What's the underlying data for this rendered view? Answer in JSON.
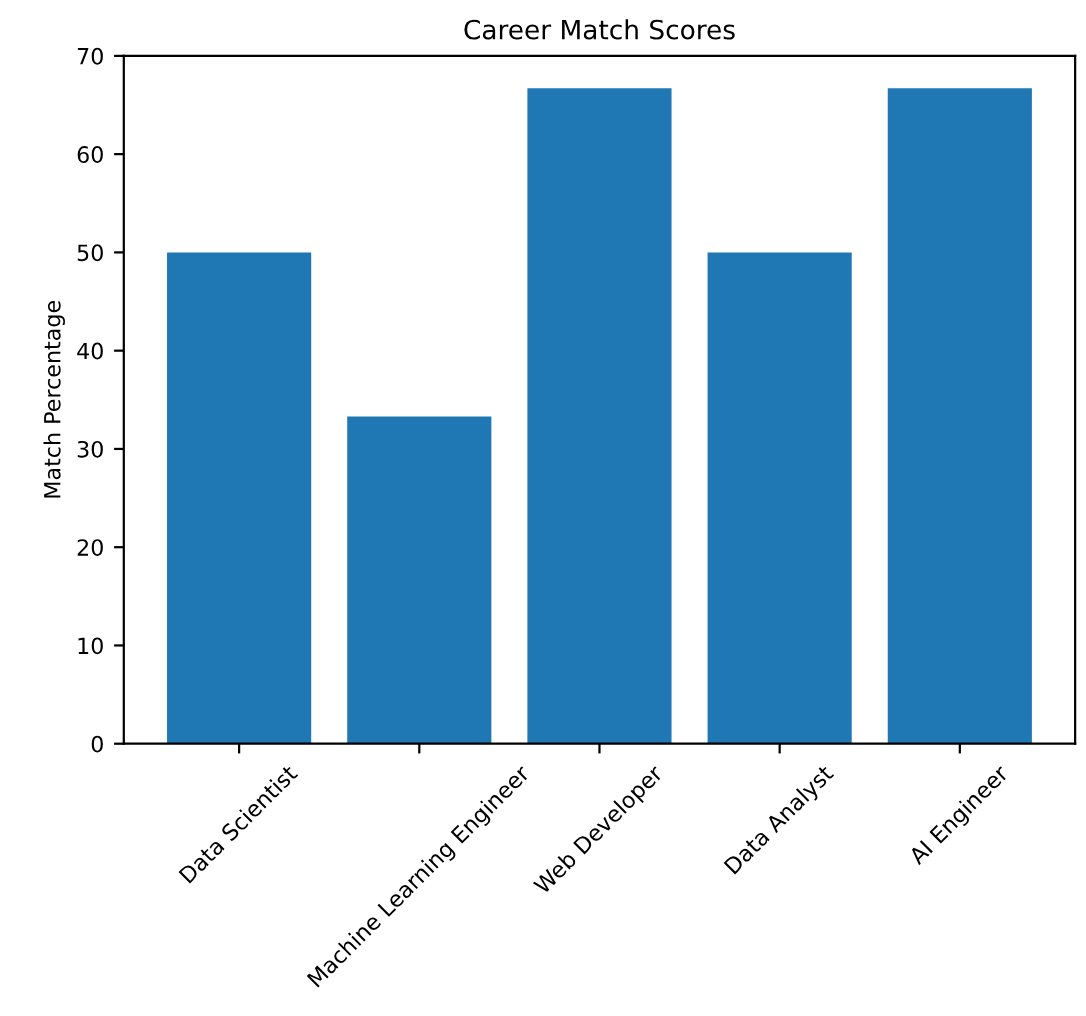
{
  "chart_data": {
    "type": "bar",
    "title": "Career Match Scores",
    "ylabel": "Match Percentage",
    "categories": [
      "Data Scientist",
      "Machine Learning Engineer",
      "Web Developer",
      "Data Analyst",
      "AI Engineer"
    ],
    "values": [
      50,
      33.3,
      66.7,
      50,
      66.7
    ],
    "color": "#1f77b4",
    "ylim": [
      0,
      70
    ],
    "yticks": [
      0,
      10,
      20,
      30,
      40,
      50,
      60,
      70
    ],
    "grid": false,
    "legend": false
  }
}
